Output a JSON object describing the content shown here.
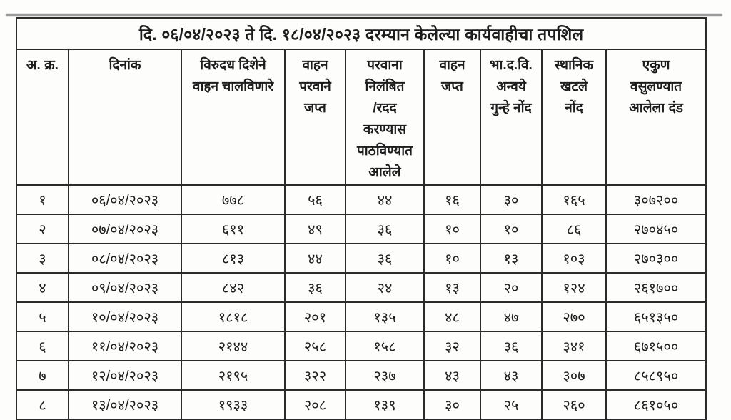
{
  "document": {
    "title": "दि. ०६/०४/२०२३ ते दि. १८/०४/२०२३ दरम्यान केलेल्या कार्यवाहीचा तपशिल"
  },
  "table": {
    "headers": [
      "अ. क्र.",
      "दिनांक",
      "विरुदध दिशेने\nवाहन चालविणारे",
      "वाहन\nपरवाने\nजप्त",
      "परवाना\nनिलंबित\n/रदद\nकरण्यास\nपाठविण्यात\nआलेले",
      "वाहन\nजप्त",
      "भा.द.वि.\nअन्वये\nगुन्हे नोंद",
      "स्थानिक\nखटले\nनोंद",
      "एकुण\nवसुलण्यात\nआलेला दंड"
    ],
    "rows": [
      [
        "१",
        "०६/०४/२०२३",
        "७७८",
        "५६",
        "४४",
        "१६",
        "३०",
        "१६५",
        "३०७२००"
      ],
      [
        "२",
        "०७/०४/२०२३",
        "६११",
        "४९",
        "३६",
        "१०",
        "१०",
        "८६",
        "२७०४५०"
      ],
      [
        "३",
        "०८/०४/२०२३",
        "८१३",
        "४४",
        "३६",
        "१०",
        "१३",
        "१०३",
        "२७०३००"
      ],
      [
        "४",
        "०९/०४/२०२३",
        "८४२",
        "३६",
        "२४",
        "१३",
        "२०",
        "१२४",
        "२६१७००"
      ],
      [
        "५",
        "१०/०४/२०२३",
        "१८१८",
        "२०१",
        "१३५",
        "४८",
        "४७",
        "२७०",
        "६५१३५०"
      ],
      [
        "६",
        "११/०४/२०२३",
        "२१४४",
        "२५८",
        "१५८",
        "३२",
        "३६",
        "३४१",
        "६७१५००"
      ],
      [
        "७",
        "१२/०४/२०२३",
        "२१९५",
        "३२२",
        "२३७",
        "४३",
        "४३",
        "३०७",
        "८५८९५०"
      ],
      [
        "८",
        "१३/०४/२०२३",
        "१९३३",
        "२०८",
        "१३९",
        "३०",
        "२५",
        "२६०",
        "८६१०५०"
      ]
    ]
  },
  "colors": {
    "ink": "#1d1d1d",
    "border": "#2b2b2b",
    "paper": "#fdfdfc",
    "scan_shadow": "#9b9b9b"
  }
}
